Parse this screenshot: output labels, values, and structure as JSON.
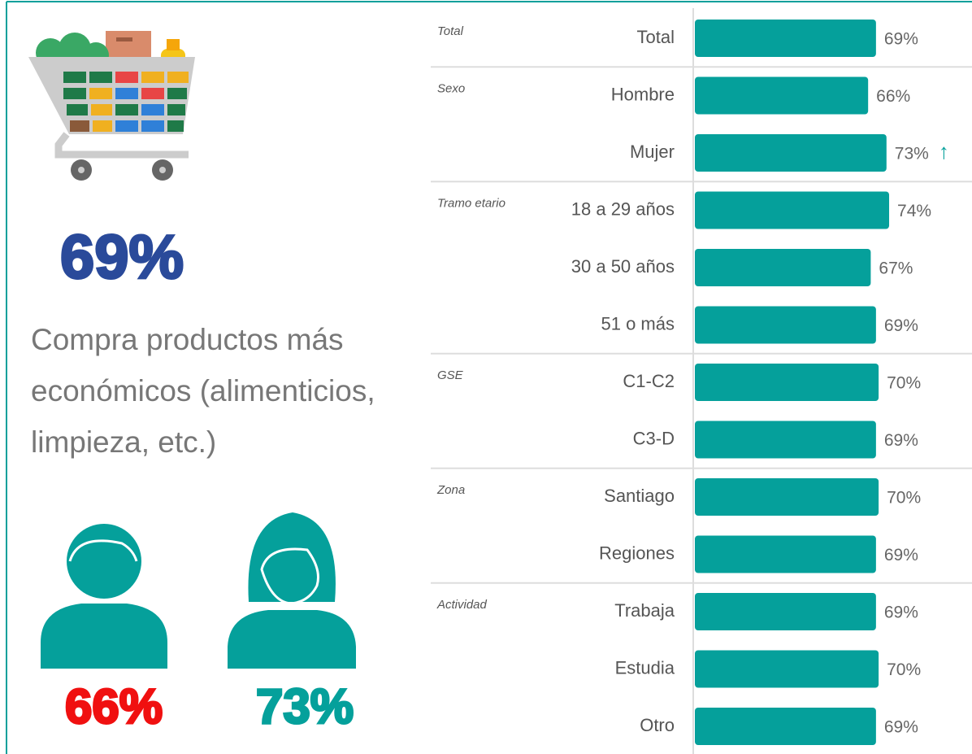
{
  "summary": {
    "headline": "69%",
    "description": [
      "Compra productos más",
      "económicos (alimenticios,",
      "limpieza, etc.)"
    ],
    "men": "66%",
    "women": "73%"
  },
  "chart_data": {
    "type": "bar",
    "orientation": "horizontal",
    "color": "#05a09b",
    "group_labels": [
      "Total",
      "Sexo",
      null,
      "Tramo etario",
      null,
      null,
      "GSE",
      null,
      "Zona",
      null,
      "Actividad",
      null,
      null
    ],
    "categories": [
      "Total",
      "Hombre",
      "Mujer",
      "18 a 29 años",
      "30 a 50 años",
      "51 o más",
      "C1-C2",
      "C3-D",
      "Santiago",
      "Regiones",
      "Trabaja",
      "Estudia",
      "Otro"
    ],
    "values": [
      69,
      66,
      73,
      74,
      67,
      69,
      70,
      69,
      70,
      69,
      69,
      70,
      69
    ],
    "value_labels": [
      "69%",
      "66%",
      "73%",
      "74%",
      "67%",
      "69%",
      "70%",
      "69%",
      "70%",
      "69%",
      "69%",
      "70%",
      "69%"
    ],
    "markers": [
      null,
      null,
      "↑",
      null,
      null,
      null,
      null,
      null,
      null,
      null,
      null,
      null,
      null
    ],
    "xlim": [
      0,
      100
    ]
  }
}
